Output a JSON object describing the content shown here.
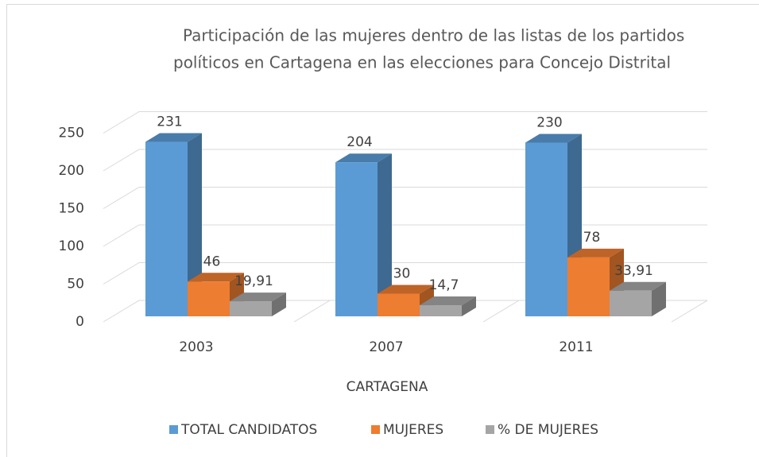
{
  "chart_data": {
    "type": "bar3d",
    "title": [
      "Participación de las mujeres dentro de las listas de los partidos",
      "políticos en Cartagena en las elecciones para Concejo Distrital"
    ],
    "categories": [
      "2003",
      "2007",
      "2011"
    ],
    "x_label": "CARTAGENA",
    "series": [
      {
        "name": "TOTAL CANDIDATOS",
        "color": "#5b9bd5",
        "values": [
          231,
          204,
          230
        ]
      },
      {
        "name": "MUJERES",
        "color": "#ed7d31",
        "values": [
          46,
          30,
          78
        ]
      },
      {
        "name": "% DE MUJERES",
        "color": "#a5a5a5",
        "values": [
          19.91,
          14.7,
          33.91
        ],
        "value_labels": [
          "19,91",
          "14,7",
          "33,91"
        ]
      }
    ],
    "ylim": [
      0,
      250
    ],
    "yticks": [
      0,
      50,
      100,
      150,
      200,
      250
    ],
    "grid": true,
    "legend": "bottom"
  }
}
